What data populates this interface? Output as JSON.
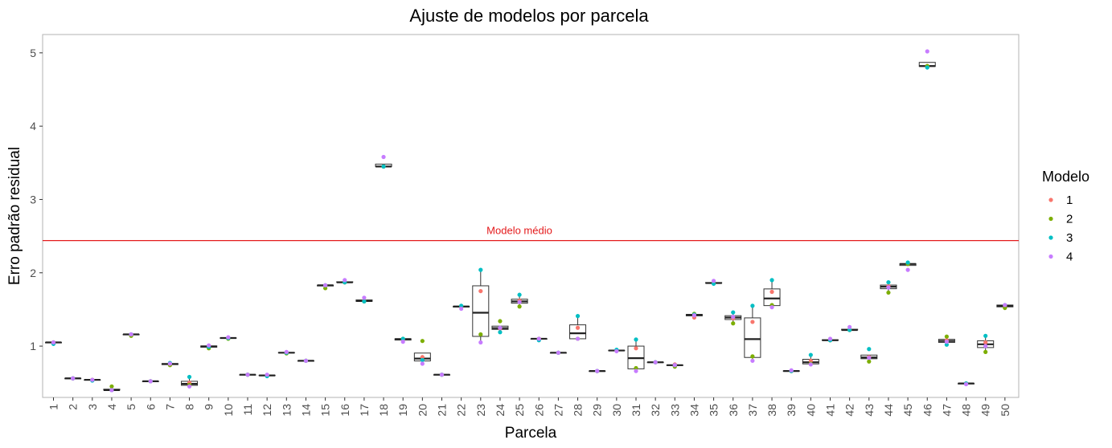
{
  "chart_data": {
    "type": "boxplot",
    "title": "Ajuste de modelos por parcela",
    "xlabel": "Parcela",
    "ylabel": "Erro padrão residual",
    "ylim": [
      0.3,
      5.25
    ],
    "yticks": [
      1,
      2,
      3,
      4,
      5
    ],
    "grid": false,
    "legend": {
      "title": "Modelo",
      "placement": "right",
      "entries": [
        {
          "name": "1",
          "color": "#F8766D"
        },
        {
          "name": "2",
          "color": "#7CAE00"
        },
        {
          "name": "3",
          "color": "#00BFC4"
        },
        {
          "name": "4",
          "color": "#C77CFF"
        }
      ]
    },
    "reference_line": {
      "y": 2.44,
      "label": "Modelo médio",
      "color": "#e41a1c"
    },
    "categories": [
      "1",
      "2",
      "3",
      "4",
      "5",
      "6",
      "7",
      "8",
      "9",
      "10",
      "11",
      "12",
      "13",
      "14",
      "15",
      "16",
      "17",
      "18",
      "19",
      "20",
      "21",
      "22",
      "23",
      "24",
      "25",
      "26",
      "27",
      "28",
      "29",
      "30",
      "31",
      "32",
      "33",
      "34",
      "35",
      "36",
      "37",
      "38",
      "39",
      "40",
      "41",
      "42",
      "43",
      "44",
      "45",
      "46",
      "47",
      "48",
      "49",
      "50"
    ],
    "series": [
      {
        "name": "1",
        "values": [
          1.05,
          0.56,
          0.54,
          0.4,
          1.16,
          0.52,
          0.75,
          0.5,
          1.0,
          1.11,
          0.61,
          0.6,
          0.91,
          0.8,
          1.83,
          1.87,
          1.62,
          3.45,
          1.09,
          0.85,
          0.61,
          1.54,
          1.75,
          1.24,
          1.62,
          1.1,
          0.91,
          1.25,
          0.66,
          0.94,
          0.97,
          0.78,
          0.75,
          1.39,
          1.86,
          1.38,
          1.33,
          1.74,
          0.66,
          0.8,
          1.08,
          1.22,
          0.85,
          1.82,
          2.12,
          4.82,
          1.08,
          0.49,
          1.05,
          1.54
        ]
      },
      {
        "name": "2",
        "values": [
          1.05,
          0.56,
          0.54,
          0.45,
          1.14,
          0.52,
          0.74,
          0.47,
          0.97,
          1.1,
          0.61,
          0.6,
          0.9,
          0.8,
          1.79,
          1.87,
          1.61,
          3.45,
          1.1,
          1.07,
          0.61,
          1.54,
          1.16,
          1.34,
          1.54,
          1.1,
          0.91,
          1.1,
          0.66,
          0.94,
          0.7,
          0.78,
          0.72,
          1.44,
          1.86,
          1.31,
          0.86,
          1.56,
          0.66,
          0.76,
          1.08,
          1.22,
          0.79,
          1.73,
          2.12,
          4.82,
          1.13,
          0.49,
          0.92,
          1.52
        ]
      },
      {
        "name": "3",
        "values": [
          1.03,
          0.56,
          0.53,
          0.4,
          1.16,
          0.52,
          0.77,
          0.58,
          0.99,
          1.11,
          0.61,
          0.59,
          0.91,
          0.8,
          1.83,
          1.87,
          1.61,
          3.45,
          1.1,
          0.81,
          0.61,
          1.55,
          2.04,
          1.19,
          1.7,
          1.08,
          0.91,
          1.41,
          0.66,
          0.95,
          1.09,
          0.78,
          0.74,
          1.43,
          1.85,
          1.46,
          1.55,
          1.9,
          0.66,
          0.88,
          1.08,
          1.22,
          0.96,
          1.87,
          2.14,
          4.8,
          1.02,
          0.49,
          1.14,
          1.56
        ]
      },
      {
        "name": "4",
        "values": [
          1.05,
          0.56,
          0.54,
          0.4,
          1.16,
          0.52,
          0.76,
          0.45,
          1.01,
          1.12,
          0.61,
          0.61,
          0.92,
          0.8,
          1.83,
          1.9,
          1.66,
          3.58,
          1.06,
          0.76,
          0.61,
          1.51,
          1.05,
          1.25,
          1.6,
          1.1,
          0.91,
          1.1,
          0.66,
          0.93,
          0.66,
          0.78,
          0.74,
          1.42,
          1.89,
          1.4,
          0.8,
          1.53,
          0.67,
          0.75,
          1.1,
          1.26,
          0.84,
          1.8,
          2.04,
          5.02,
          1.06,
          0.48,
          1.0,
          1.56
        ]
      }
    ]
  }
}
